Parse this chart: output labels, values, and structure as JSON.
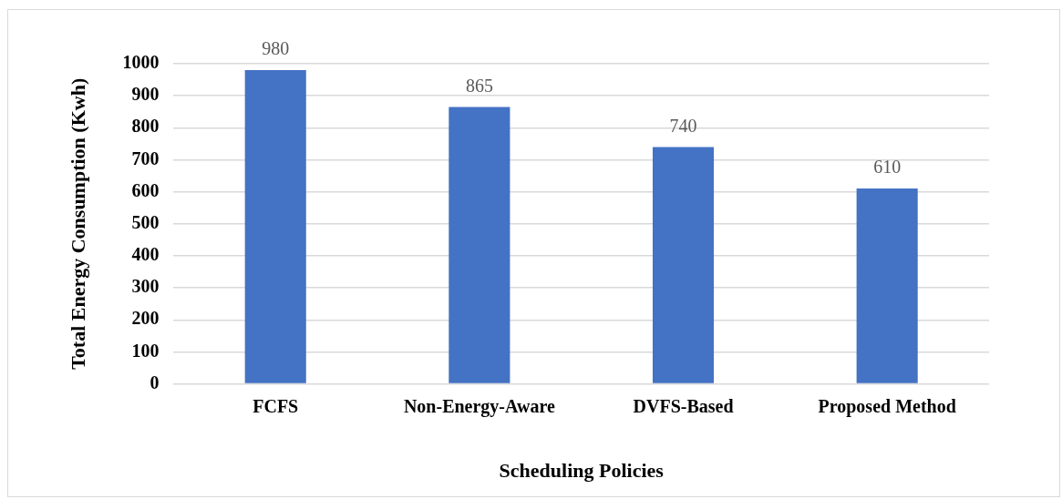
{
  "chart_data": {
    "type": "bar",
    "xlabel": "Scheduling Policies",
    "ylabel": "Total Energy Consumption (Kwh)",
    "categories": [
      "FCFS",
      "Non-Energy-Aware",
      "DVFS-Based",
      "Proposed Method"
    ],
    "values": [
      980,
      865,
      740,
      610
    ],
    "color": "#4472c4",
    "ylim": [
      0,
      1000
    ],
    "yticks": [
      0,
      100,
      200,
      300,
      400,
      500,
      600,
      700,
      800,
      900,
      1000
    ],
    "grid": "y",
    "legend": false,
    "data_labels": true
  }
}
